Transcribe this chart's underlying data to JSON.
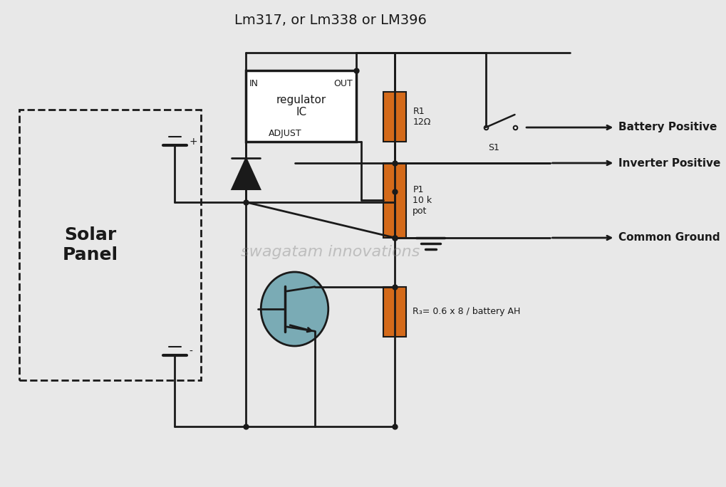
{
  "title": "Lm317, or Lm338 or LM396",
  "background_color": "#e8e8e8",
  "line_color": "#1a1a1a",
  "orange_color": "#d46a1a",
  "blue_color": "#7aabb5",
  "text_color": "#1a1a1a",
  "watermark": "swagatam innovations",
  "labels": {
    "battery_positive": "Battery Positive",
    "inverter_positive": "Inverter Positive",
    "common_ground": "Common Ground",
    "solar_panel": "Solar\nPanel",
    "regulator_ic": "regulator\nIC",
    "in_label": "IN",
    "out_label": "OUT",
    "adjust_label": "ADJUST",
    "r1_label": "R1\n12Ω",
    "p1_label": "P1\n10 k\npot",
    "r3_label": "R₃= 0.6 x 8 / battery AH",
    "s1_label": "S1",
    "plus_label": "+",
    "minus_label": "-"
  }
}
